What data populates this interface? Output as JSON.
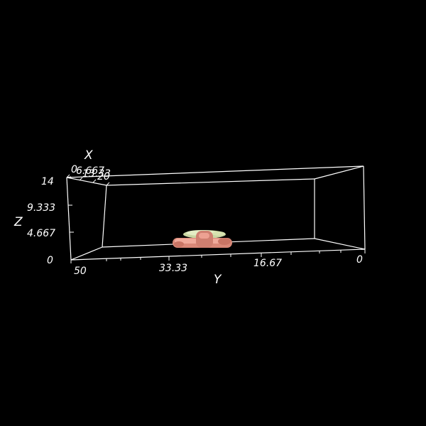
{
  "scene": {
    "background_color": "#000000",
    "axis_color": "#ffffff",
    "axes": {
      "x": {
        "title": "X",
        "tick_labels": [
          "0",
          "6.667",
          "13.33",
          "20"
        ]
      },
      "y": {
        "title": "Y",
        "tick_labels": [
          "50",
          "33.33",
          "16.67",
          "0"
        ]
      },
      "z": {
        "title": "Z",
        "tick_labels": [
          "14",
          "9.333",
          "4.667",
          "0"
        ]
      }
    },
    "surfaces": [
      {
        "name": "pale-green-isosurface",
        "color": "#d9e6b8"
      },
      {
        "name": "salmon-isosurface",
        "color": "#e89a8a"
      }
    ]
  }
}
